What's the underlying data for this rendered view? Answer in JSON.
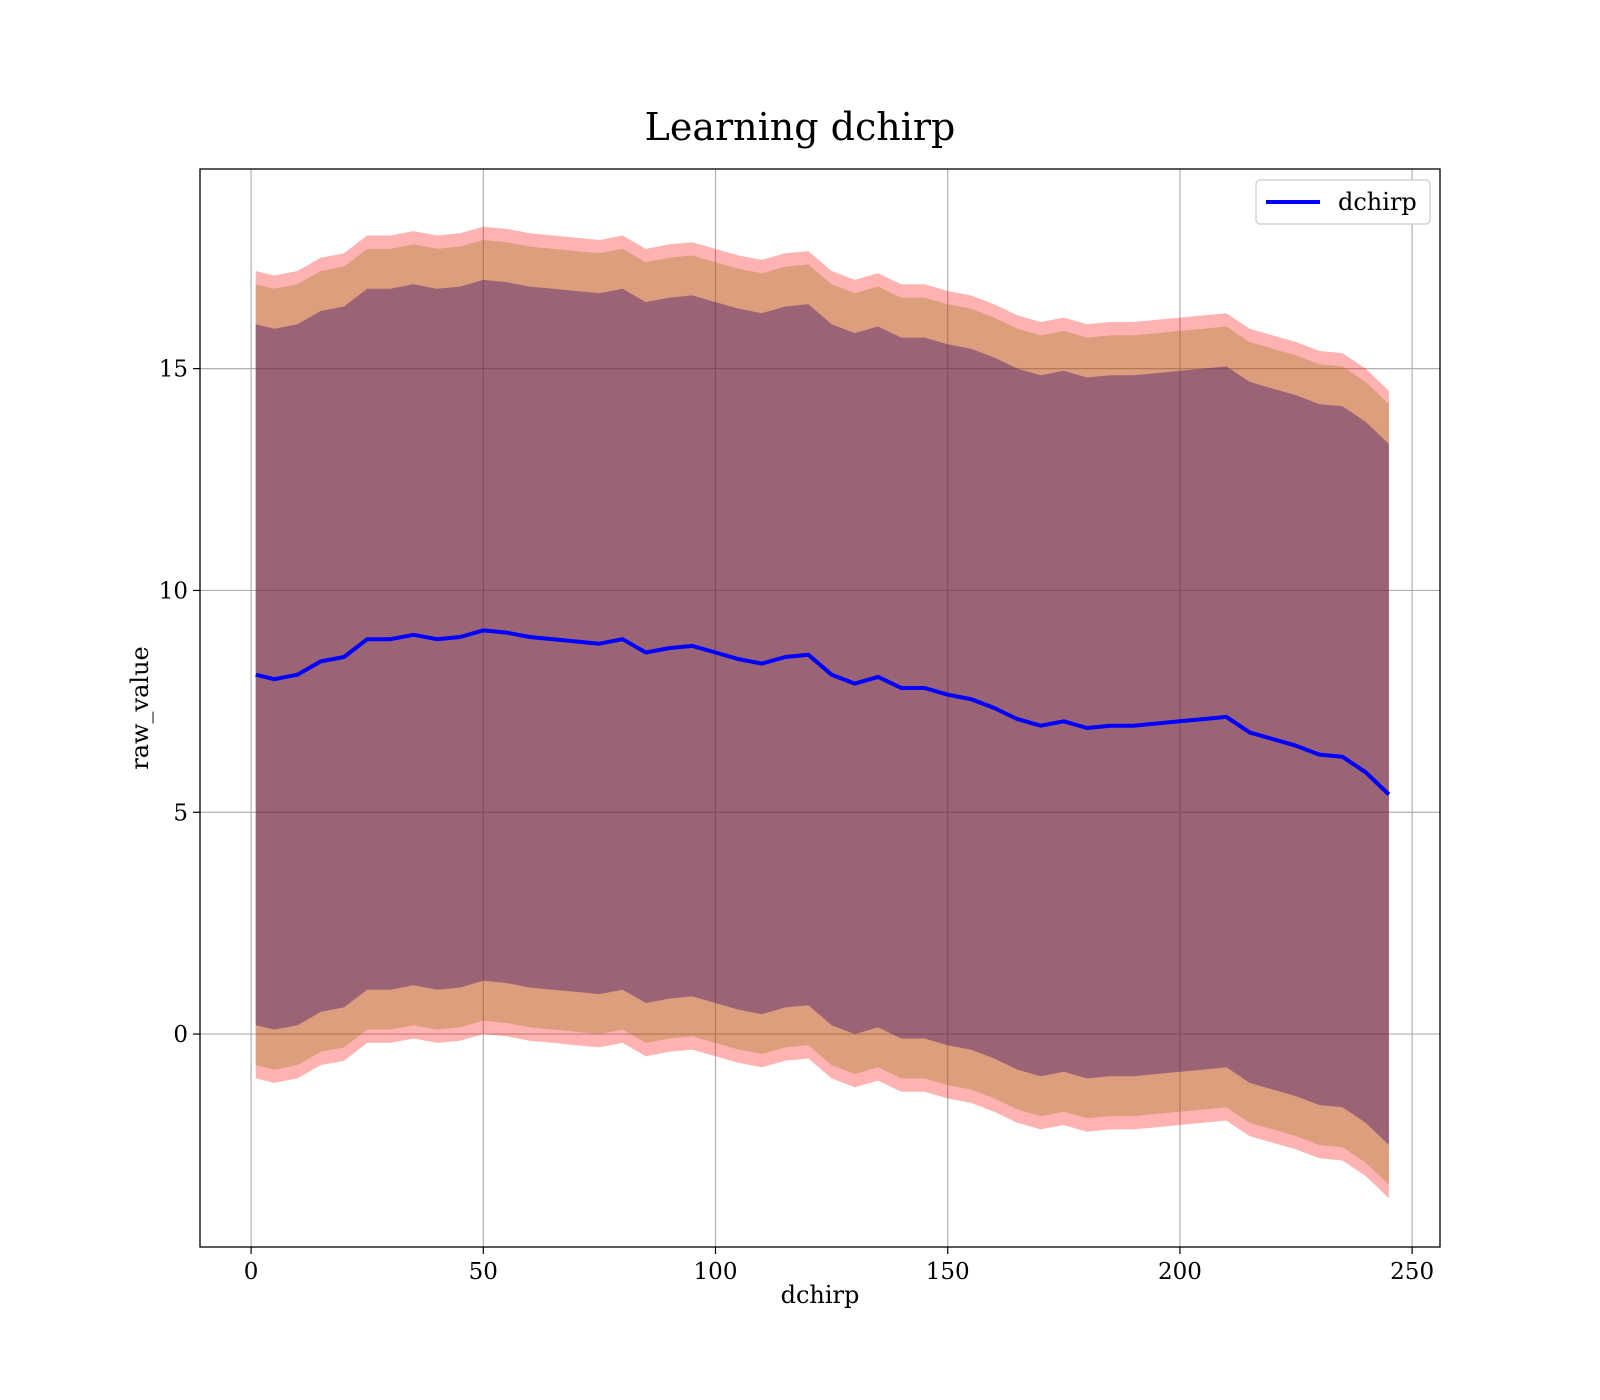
{
  "chart_data": {
    "type": "line",
    "title": "Learning dchirp",
    "xlabel": "dchirp",
    "ylabel": "raw_value",
    "xlim": [
      -11,
      256
    ],
    "ylim": [
      -4.8,
      19.5
    ],
    "xticks": [
      0,
      50,
      100,
      150,
      200,
      250
    ],
    "yticks": [
      0,
      5,
      10,
      15
    ],
    "grid": true,
    "legend": {
      "position": "top-right",
      "entries": [
        "dchirp"
      ]
    },
    "series": [
      {
        "name": "dchirp",
        "color": "#0000ff",
        "x": [
          1,
          5,
          10,
          15,
          20,
          25,
          30,
          35,
          40,
          45,
          50,
          55,
          60,
          65,
          70,
          75,
          80,
          85,
          90,
          95,
          100,
          105,
          110,
          115,
          120,
          125,
          130,
          135,
          140,
          145,
          150,
          155,
          160,
          165,
          170,
          175,
          180,
          185,
          190,
          195,
          200,
          205,
          210,
          215,
          220,
          225,
          230,
          235,
          240,
          245
        ],
        "y": [
          8.1,
          8.0,
          8.1,
          8.4,
          8.5,
          8.9,
          8.9,
          9.0,
          8.9,
          8.95,
          9.1,
          9.05,
          8.95,
          8.9,
          8.85,
          8.8,
          8.9,
          8.6,
          8.7,
          8.75,
          8.6,
          8.45,
          8.35,
          8.5,
          8.55,
          8.1,
          7.9,
          8.05,
          7.8,
          7.8,
          7.65,
          7.55,
          7.35,
          7.1,
          6.95,
          7.05,
          6.9,
          6.95,
          6.95,
          7.0,
          7.05,
          7.1,
          7.15,
          6.8,
          6.65,
          6.5,
          6.3,
          6.25,
          5.9,
          5.4
        ]
      }
    ],
    "bands": [
      {
        "name": "outer",
        "color": "#ff0000",
        "opacity": 0.3,
        "half_width": 9.1
      },
      {
        "name": "middle",
        "color": "#8b7000",
        "opacity": 0.3,
        "half_width": 8.8
      },
      {
        "name": "inner",
        "color": "#3a0a6e",
        "opacity": 0.4,
        "half_width": 7.9
      }
    ]
  }
}
